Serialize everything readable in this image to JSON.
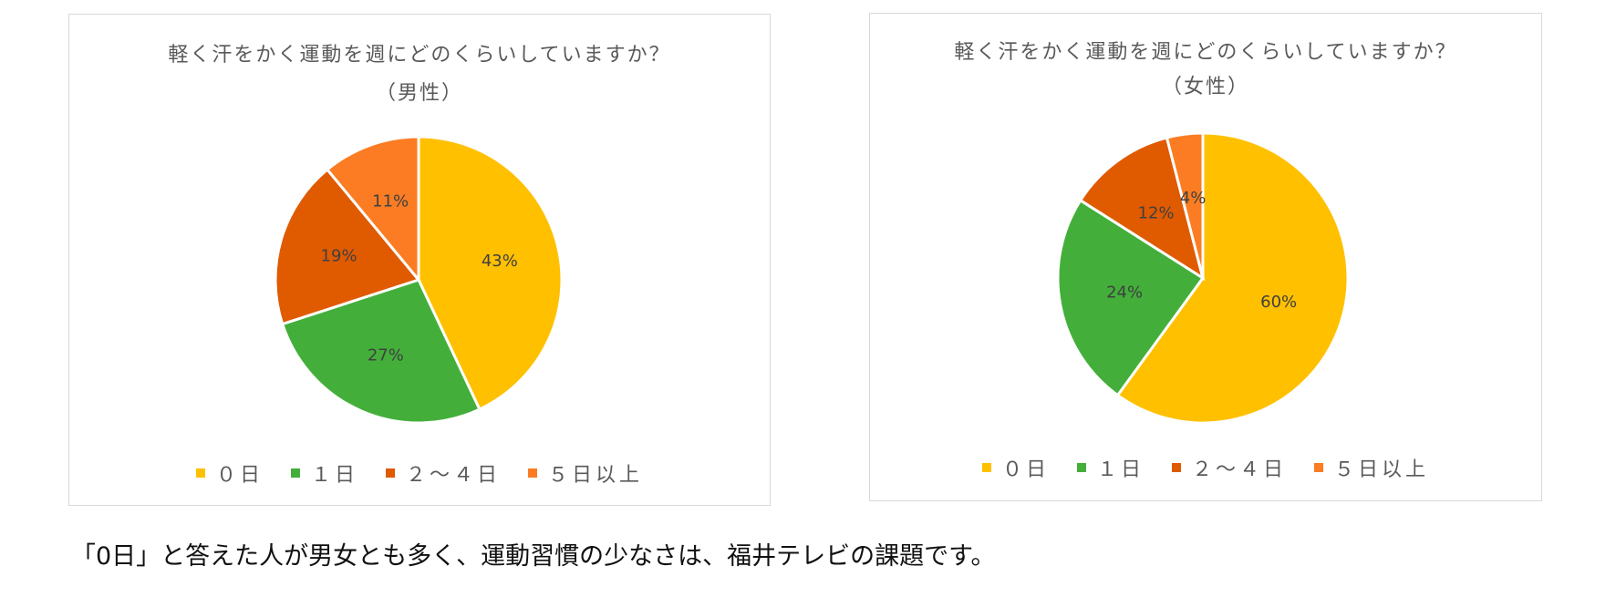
{
  "chart_data": [
    {
      "type": "pie",
      "title": "軽く汗をかく運動を週にどのくらいしていますか？",
      "subtitle": "（男性）",
      "categories": [
        "０日",
        "１日",
        "２～４日",
        "５日以上"
      ],
      "values": [
        43,
        27,
        19,
        11
      ],
      "labels": [
        "43%",
        "27%",
        "19%",
        "11%"
      ],
      "colors": [
        "#FFC000",
        "#43AF3A",
        "#E05A00",
        "#FB7C22"
      ],
      "legend_position": "bottom"
    },
    {
      "type": "pie",
      "title": "軽く汗をかく運動を週にどのくらいしていますか？",
      "subtitle": "（女性）",
      "categories": [
        "０日",
        "１日",
        "２～４日",
        "５日以上"
      ],
      "values": [
        60,
        24,
        12,
        4
      ],
      "labels": [
        "60%",
        "24%",
        "12%",
        "4%"
      ],
      "colors": [
        "#FFC000",
        "#43AF3A",
        "#E05A00",
        "#FB7C22"
      ],
      "legend_position": "bottom"
    }
  ],
  "caption": "「0日」と答えた人が男女とも多く、運動習慣の少なさは、福井テレビの課題です。"
}
